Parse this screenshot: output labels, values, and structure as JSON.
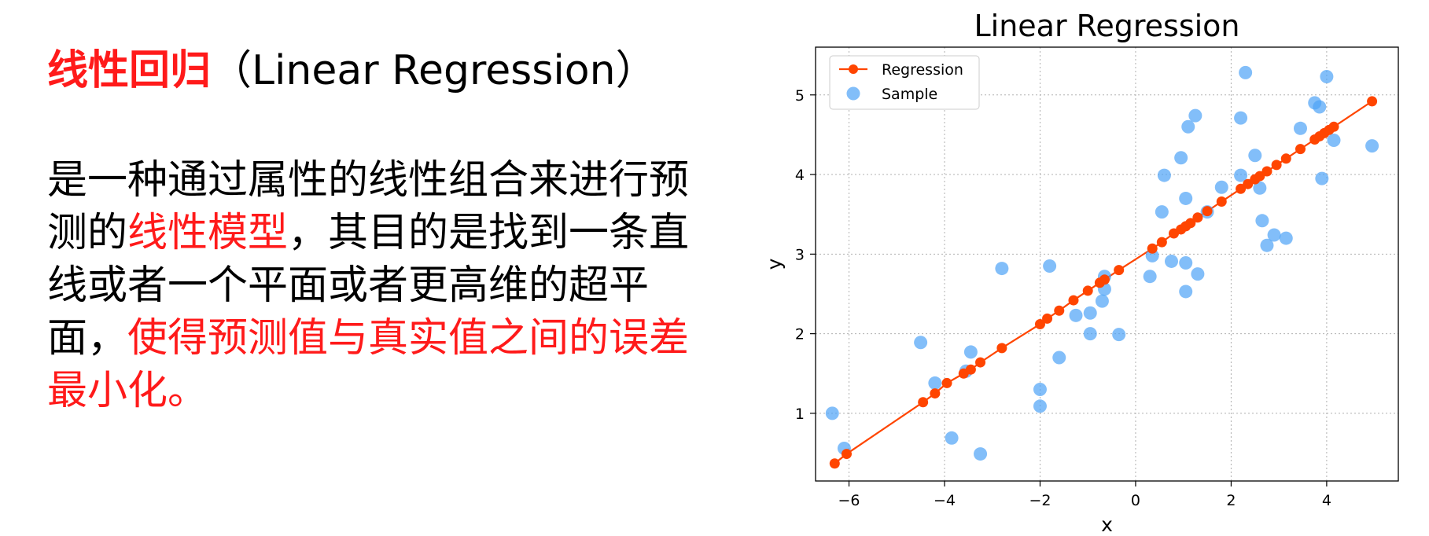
{
  "text": {
    "heading_zh": "线性回归",
    "heading_en": "（Linear Regression）",
    "p1": "是一种通过属性的线性组合来进行预测的",
    "p2_red": "线性模型",
    "p3": "，其目的是找到一条直线或者一个平面或者更高维的超平面，",
    "p4_red": "使得预测值与真实值之间的误差最小化。"
  },
  "chart_data": {
    "type": "scatter",
    "title": "Linear Regression",
    "xlabel": "x",
    "ylabel": "y",
    "xlim": [
      -6.7,
      5.5
    ],
    "ylim": [
      0.15,
      5.6
    ],
    "xticks": [
      -6,
      -4,
      -2,
      0,
      2,
      4
    ],
    "yticks": [
      1,
      2,
      3,
      4,
      5
    ],
    "xtick_labels": [
      "−6",
      "−4",
      "−2",
      "0",
      "2",
      "4"
    ],
    "ytick_labels": [
      "1",
      "2",
      "3",
      "4",
      "5"
    ],
    "grid": true,
    "legend_position": "top-left",
    "series": [
      {
        "name": "Regression",
        "kind": "line-markers",
        "color": "#ff4500",
        "x": [
          -6.3,
          -6.05,
          -4.45,
          -4.2,
          -3.95,
          -3.6,
          -3.45,
          -3.25,
          -2.8,
          -2.0,
          -1.85,
          -1.6,
          -1.3,
          -1.0,
          -0.75,
          -0.65,
          -0.35,
          0.35,
          0.55,
          0.8,
          0.95,
          1.05,
          1.15,
          1.3,
          1.5,
          1.8,
          2.2,
          2.35,
          2.5,
          2.6,
          2.75,
          2.95,
          3.15,
          3.45,
          3.75,
          3.85,
          3.95,
          4.05,
          4.15,
          4.95
        ],
        "y": [
          0.37,
          0.49,
          1.14,
          1.25,
          1.38,
          1.5,
          1.55,
          1.64,
          1.82,
          2.12,
          2.19,
          2.29,
          2.42,
          2.54,
          2.64,
          2.68,
          2.8,
          3.07,
          3.15,
          3.26,
          3.31,
          3.35,
          3.39,
          3.46,
          3.54,
          3.66,
          3.82,
          3.88,
          3.94,
          3.98,
          4.04,
          4.12,
          4.2,
          4.32,
          4.44,
          4.48,
          4.52,
          4.56,
          4.6,
          4.92
        ]
      },
      {
        "name": "Sample",
        "kind": "scatter",
        "color": "#4da3f7",
        "x": [
          -6.35,
          -6.1,
          -4.5,
          -4.2,
          -3.85,
          -3.55,
          -3.45,
          -3.25,
          -2.8,
          -2.0,
          -2.0,
          -1.8,
          -1.6,
          -1.25,
          -0.95,
          -0.95,
          -0.7,
          -0.65,
          -0.65,
          -0.35,
          0.3,
          0.35,
          0.55,
          0.6,
          0.75,
          0.95,
          1.05,
          1.05,
          1.05,
          1.1,
          1.25,
          1.3,
          1.5,
          1.8,
          2.2,
          2.2,
          2.3,
          2.5,
          2.6,
          2.65,
          2.75,
          2.9,
          3.15,
          3.45,
          3.75,
          3.9,
          3.85,
          4.0,
          4.15,
          4.95
        ],
        "y": [
          1.0,
          0.56,
          1.89,
          1.38,
          0.69,
          1.53,
          1.77,
          0.49,
          2.82,
          1.09,
          1.3,
          2.85,
          1.7,
          2.23,
          2.0,
          2.26,
          2.41,
          2.56,
          2.72,
          1.99,
          2.72,
          2.98,
          3.53,
          3.99,
          2.91,
          4.21,
          2.53,
          2.89,
          3.7,
          4.6,
          4.74,
          2.75,
          3.53,
          3.84,
          4.71,
          3.99,
          5.28,
          4.24,
          3.83,
          3.42,
          3.11,
          3.24,
          3.2,
          4.58,
          4.9,
          3.95,
          4.85,
          5.23,
          4.43,
          4.36
        ]
      }
    ]
  }
}
